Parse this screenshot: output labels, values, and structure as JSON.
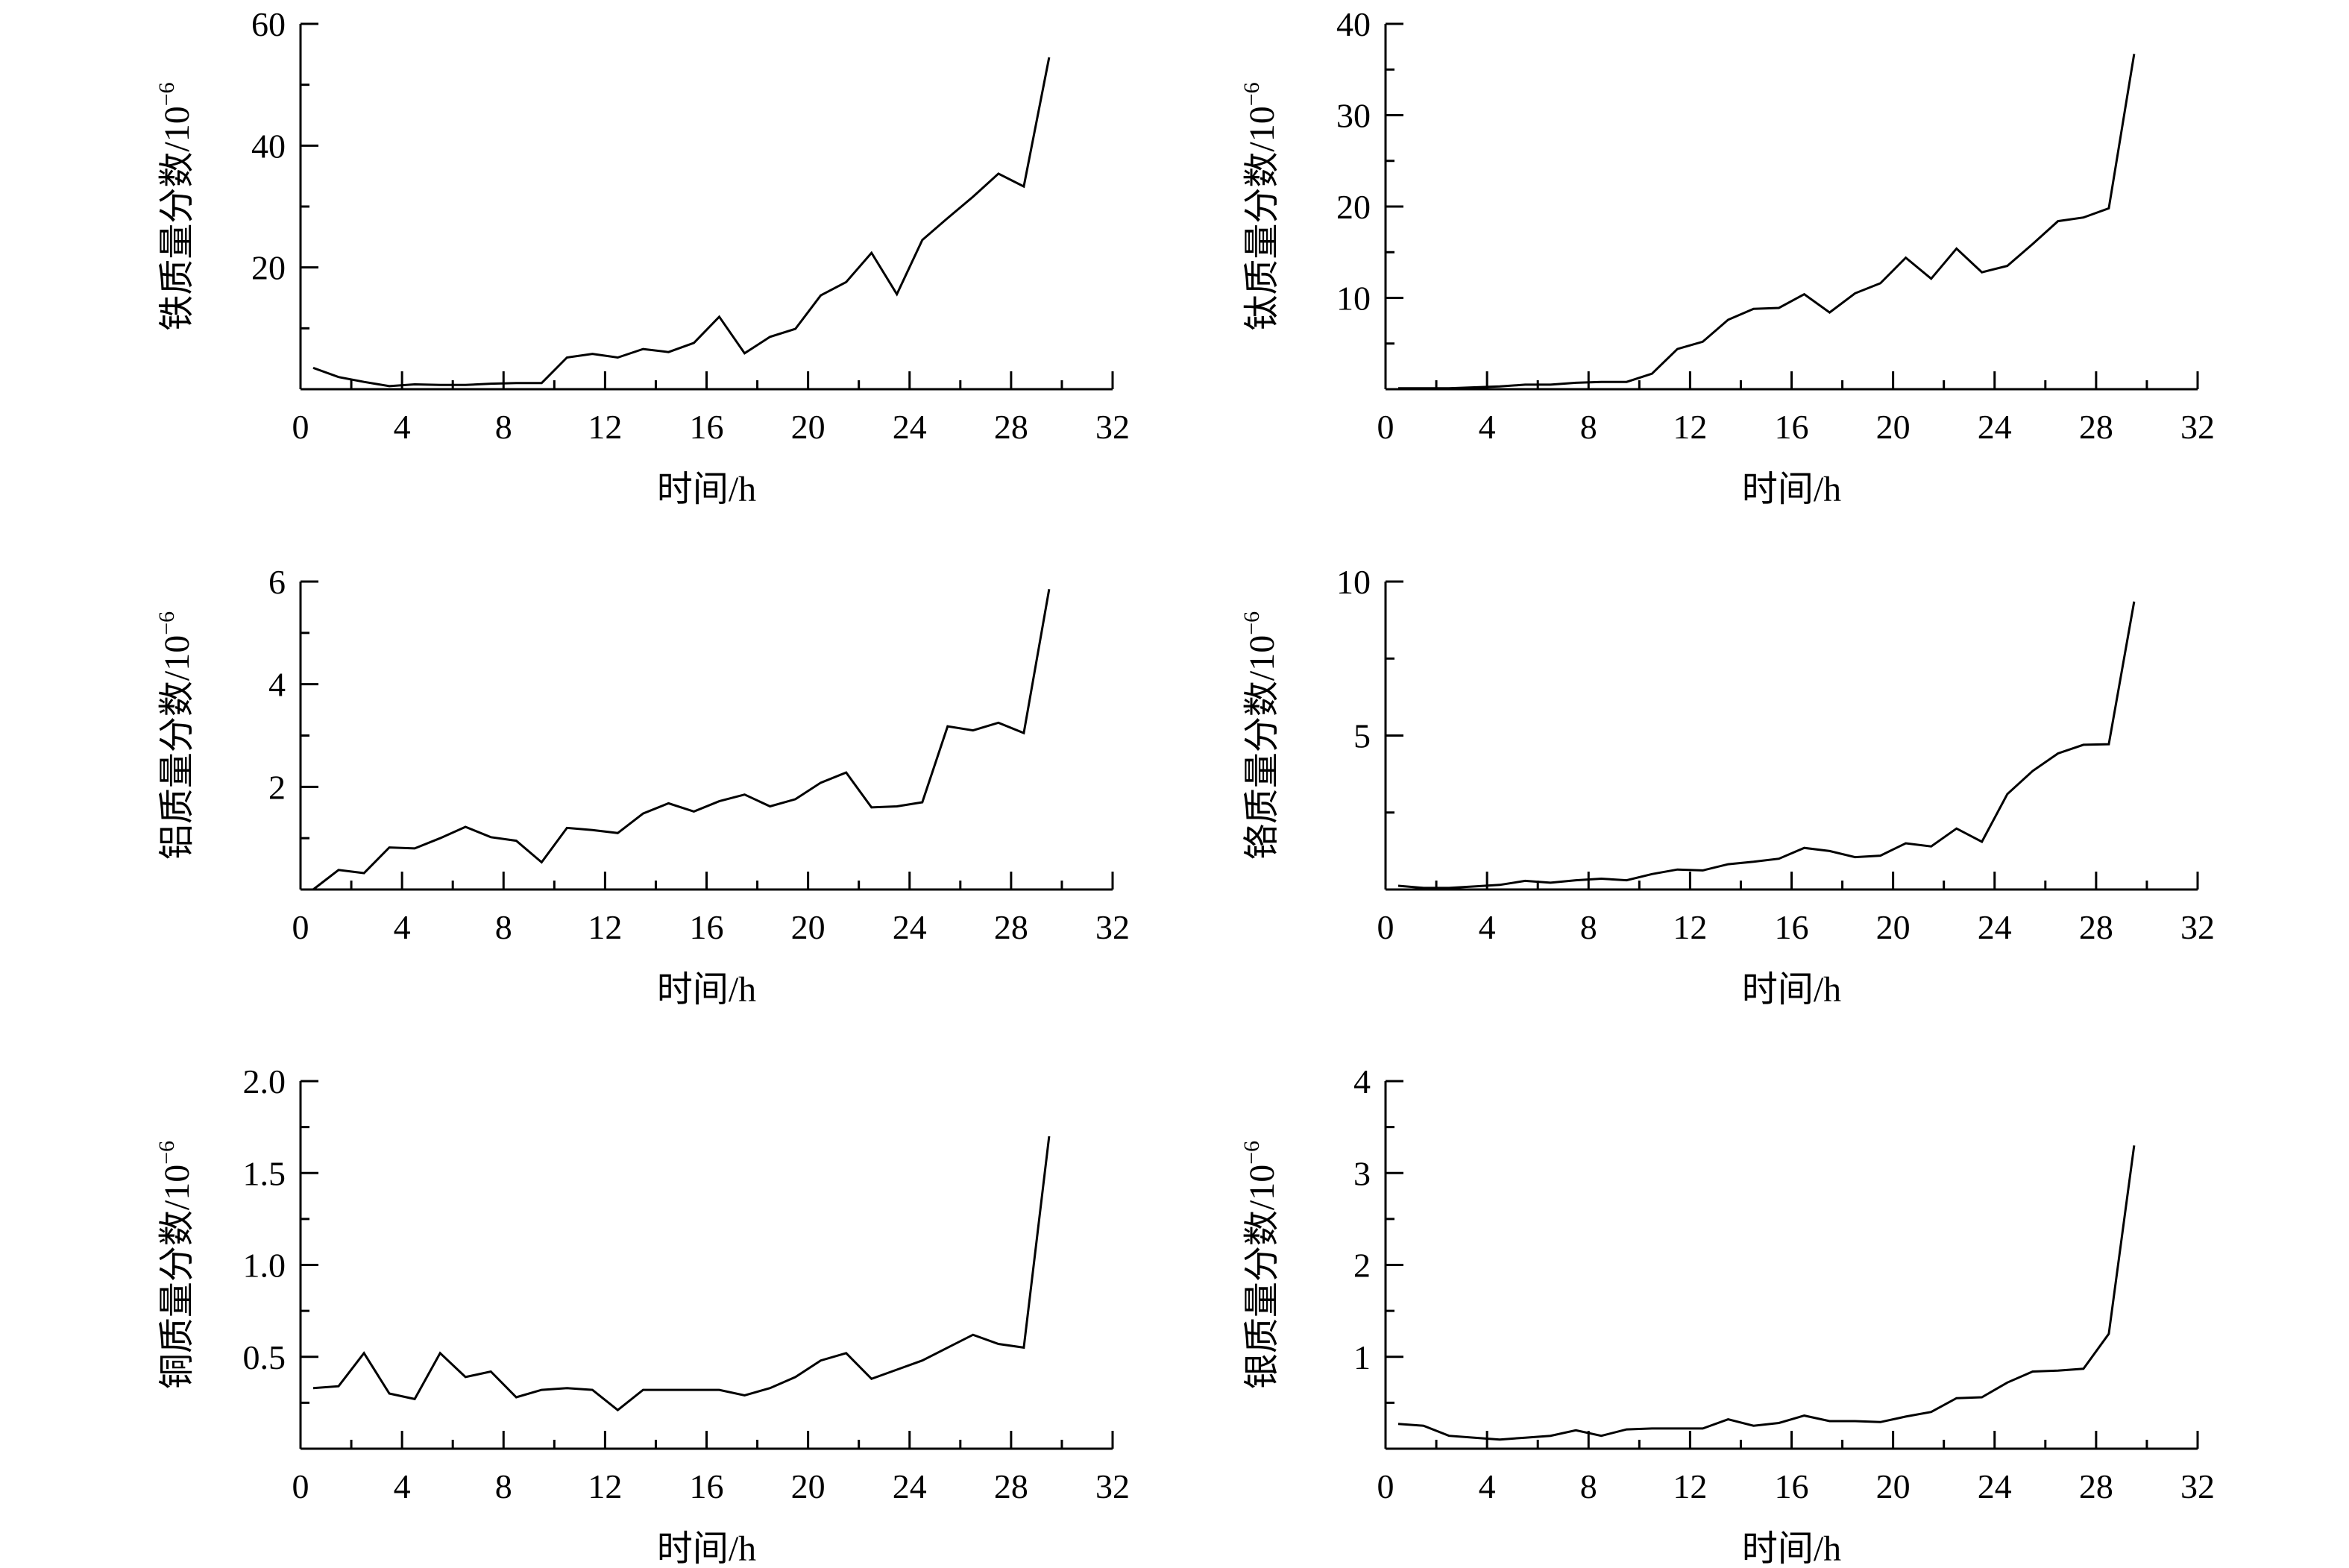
{
  "figure": {
    "colors": {
      "line": "#000000",
      "background": "#ffffff"
    }
  },
  "chart_data": [
    {
      "type": "line",
      "ylabel": "铁质量分数/10",
      "ylabel_sup": "−6",
      "xlabel": "时间/h",
      "xlim": [
        0,
        32
      ],
      "ylim": [
        0,
        60
      ],
      "xticks": [
        "0",
        "4",
        "8",
        "12",
        "16",
        "20",
        "24",
        "28",
        "32"
      ],
      "yticks": [
        {
          "v": 20,
          "label": "20"
        },
        {
          "v": 40,
          "label": "40"
        },
        {
          "v": 60,
          "label": "60"
        }
      ],
      "ynominor": false,
      "x": [
        0.5,
        1.5,
        2.5,
        3.5,
        4.5,
        5.5,
        6.5,
        7.5,
        8.5,
        9.5,
        10.5,
        11.5,
        12.5,
        13.5,
        14.5,
        15.5,
        16.5,
        17.5,
        18.5,
        19.5,
        20.5,
        21.5,
        22.5,
        23.5,
        24.5,
        25.5,
        26.5,
        27.5,
        28.5,
        29.5
      ],
      "y": [
        3.5,
        2.0,
        1.2,
        0.5,
        0.8,
        0.7,
        0.7,
        0.9,
        1.0,
        1.0,
        5.2,
        5.8,
        5.2,
        6.6,
        6.1,
        7.6,
        11.9,
        5.9,
        8.6,
        9.9,
        15.4,
        17.6,
        22.4,
        15.6,
        24.5,
        28.1,
        31.6,
        35.4,
        33.3,
        54.5
      ]
    },
    {
      "type": "line",
      "ylabel": "钛质量分数/10",
      "ylabel_sup": "−6",
      "xlabel": "时间/h",
      "xlim": [
        0,
        32
      ],
      "ylim": [
        0,
        40
      ],
      "xticks": [
        "0",
        "4",
        "8",
        "12",
        "16",
        "20",
        "24",
        "28",
        "32"
      ],
      "yticks": [
        {
          "v": 10,
          "label": "10"
        },
        {
          "v": 20,
          "label": "20"
        },
        {
          "v": 30,
          "label": "30"
        },
        {
          "v": 40,
          "label": "40"
        }
      ],
      "ynominor": false,
      "x": [
        0.5,
        1.5,
        2.5,
        3.5,
        4.5,
        5.5,
        6.5,
        7.5,
        8.5,
        9.5,
        10.5,
        11.5,
        12.5,
        13.5,
        14.5,
        15.5,
        16.5,
        17.5,
        18.5,
        19.5,
        20.5,
        21.5,
        22.5,
        23.5,
        24.5,
        25.5,
        26.5,
        27.5,
        28.5,
        29.5
      ],
      "y": [
        0.1,
        0.1,
        0.1,
        0.2,
        0.3,
        0.5,
        0.5,
        0.7,
        0.8,
        0.8,
        1.7,
        4.4,
        5.2,
        7.6,
        8.8,
        8.9,
        10.4,
        8.4,
        10.5,
        11.6,
        14.4,
        12.1,
        15.4,
        12.8,
        13.5,
        15.9,
        18.4,
        18.8,
        19.8,
        36.7
      ]
    },
    {
      "type": "line",
      "ylabel": "铝质量分数/10",
      "ylabel_sup": "−6",
      "xlabel": "时间/h",
      "xlim": [
        0,
        32
      ],
      "ylim": [
        0,
        6
      ],
      "xticks": [
        "0",
        "4",
        "8",
        "12",
        "16",
        "20",
        "24",
        "28",
        "32"
      ],
      "yticks": [
        {
          "v": 2,
          "label": "2"
        },
        {
          "v": 4,
          "label": "4"
        },
        {
          "v": 6,
          "label": "6"
        }
      ],
      "ynominor": false,
      "x": [
        0.5,
        1.5,
        2.5,
        3.5,
        4.5,
        5.5,
        6.5,
        7.5,
        8.5,
        9.5,
        10.5,
        11.5,
        12.5,
        13.5,
        14.5,
        15.5,
        16.5,
        17.5,
        18.5,
        19.5,
        20.5,
        21.5,
        22.5,
        23.5,
        24.5,
        25.5,
        26.5,
        27.5,
        28.5,
        29.5
      ],
      "y": [
        0.0,
        0.38,
        0.32,
        0.82,
        0.8,
        1.0,
        1.22,
        1.02,
        0.95,
        0.53,
        1.2,
        1.16,
        1.1,
        1.48,
        1.68,
        1.52,
        1.72,
        1.85,
        1.62,
        1.76,
        2.08,
        2.28,
        1.6,
        1.62,
        1.7,
        3.18,
        3.1,
        3.25,
        3.05,
        5.85
      ]
    },
    {
      "type": "line",
      "ylabel": "铬质量分数/10",
      "ylabel_sup": "−6",
      "xlabel": "时间/h",
      "xlim": [
        0,
        32
      ],
      "ylim": [
        0,
        10
      ],
      "xticks": [
        "0",
        "4",
        "8",
        "12",
        "16",
        "20",
        "24",
        "28",
        "32"
      ],
      "yticks": [
        {
          "v": 5,
          "label": "5"
        },
        {
          "v": 10,
          "label": "10"
        }
      ],
      "ynominor": true,
      "x": [
        0.5,
        1.5,
        2.5,
        3.5,
        4.5,
        5.5,
        6.5,
        7.5,
        8.5,
        9.5,
        10.5,
        11.5,
        12.5,
        13.5,
        14.5,
        15.5,
        16.5,
        17.5,
        18.5,
        19.5,
        20.5,
        21.5,
        22.5,
        23.5,
        24.5,
        25.5,
        26.5,
        27.5,
        28.5,
        29.5
      ],
      "y": [
        0.12,
        0.05,
        0.05,
        0.1,
        0.15,
        0.28,
        0.22,
        0.3,
        0.35,
        0.3,
        0.5,
        0.65,
        0.62,
        0.82,
        0.9,
        1.0,
        1.35,
        1.25,
        1.05,
        1.1,
        1.5,
        1.4,
        1.98,
        1.55,
        3.1,
        3.85,
        4.42,
        4.7,
        4.72,
        9.35
      ]
    },
    {
      "type": "line",
      "ylabel": "铜质量分数/10",
      "ylabel_sup": "−6",
      "xlabel": "时间/h",
      "xlim": [
        0,
        32
      ],
      "ylim": [
        0,
        2
      ],
      "xticks": [
        "0",
        "4",
        "8",
        "12",
        "16",
        "20",
        "24",
        "28",
        "32"
      ],
      "yticks": [
        {
          "v": 0.5,
          "label": "0.5"
        },
        {
          "v": 1.0,
          "label": "1.0"
        },
        {
          "v": 1.5,
          "label": "1.5"
        },
        {
          "v": 2.0,
          "label": "2.0"
        }
      ],
      "ynominor": false,
      "x": [
        0.5,
        1.5,
        2.5,
        3.5,
        4.5,
        5.5,
        6.5,
        7.5,
        8.5,
        9.5,
        10.5,
        11.5,
        12.5,
        13.5,
        14.5,
        15.5,
        16.5,
        17.5,
        18.5,
        19.5,
        20.5,
        21.5,
        22.5,
        23.5,
        24.5,
        25.5,
        26.5,
        27.5,
        28.5,
        29.5
      ],
      "y": [
        0.33,
        0.34,
        0.52,
        0.3,
        0.27,
        0.52,
        0.39,
        0.42,
        0.28,
        0.32,
        0.33,
        0.32,
        0.21,
        0.32,
        0.32,
        0.32,
        0.32,
        0.29,
        0.33,
        0.39,
        0.48,
        0.52,
        0.38,
        0.43,
        0.48,
        0.55,
        0.62,
        0.57,
        0.55,
        1.7
      ]
    },
    {
      "type": "line",
      "ylabel": "银质量分数/10",
      "ylabel_sup": "−6",
      "xlabel": "时间/h",
      "xlim": [
        0,
        32
      ],
      "ylim": [
        0,
        4
      ],
      "xticks": [
        "0",
        "4",
        "8",
        "12",
        "16",
        "20",
        "24",
        "28",
        "32"
      ],
      "yticks": [
        {
          "v": 1,
          "label": "1"
        },
        {
          "v": 2,
          "label": "2"
        },
        {
          "v": 3,
          "label": "3"
        },
        {
          "v": 4,
          "label": "4"
        }
      ],
      "ynominor": false,
      "x": [
        0.5,
        1.5,
        2.5,
        3.5,
        4.5,
        5.5,
        6.5,
        7.5,
        8.5,
        9.5,
        10.5,
        11.5,
        12.5,
        13.5,
        14.5,
        15.5,
        16.5,
        17.5,
        18.5,
        19.5,
        20.5,
        21.5,
        22.5,
        23.5,
        24.5,
        25.5,
        26.5,
        27.5,
        28.5,
        29.5
      ],
      "y": [
        0.27,
        0.25,
        0.14,
        0.12,
        0.1,
        0.12,
        0.14,
        0.2,
        0.14,
        0.21,
        0.22,
        0.22,
        0.22,
        0.32,
        0.25,
        0.28,
        0.36,
        0.3,
        0.3,
        0.29,
        0.35,
        0.4,
        0.55,
        0.56,
        0.72,
        0.84,
        0.85,
        0.87,
        1.25,
        3.3
      ]
    }
  ]
}
